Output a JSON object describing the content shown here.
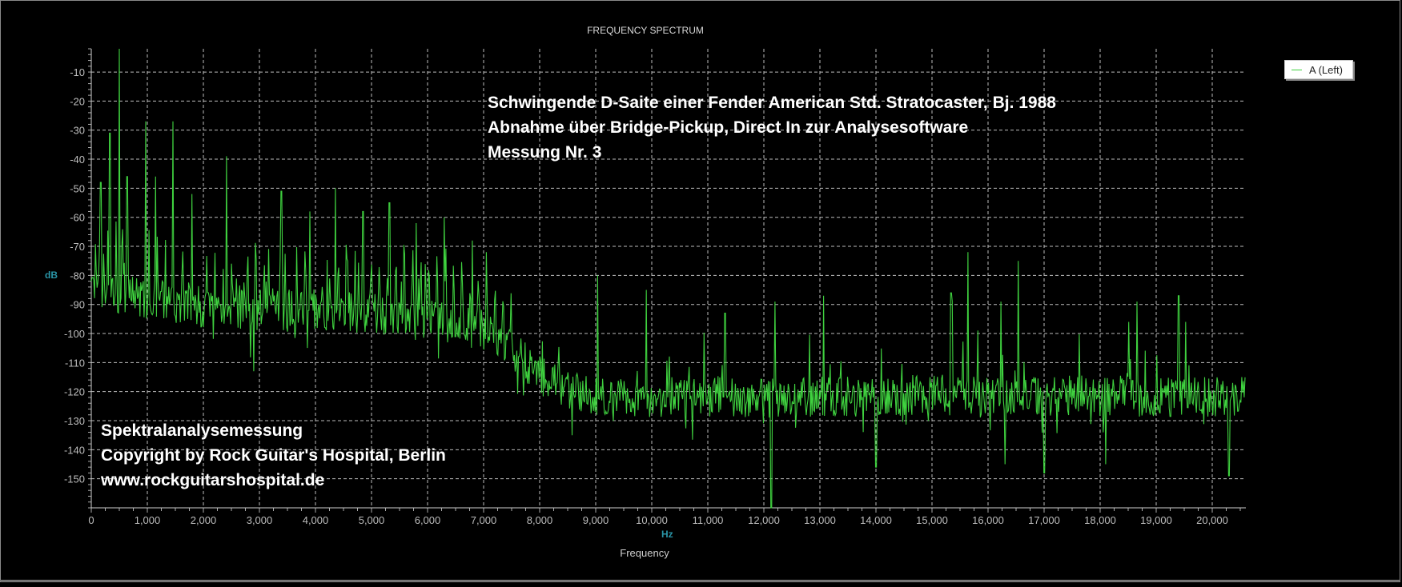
{
  "chart_data": {
    "type": "line",
    "title": "FREQUENCY SPECTRUM",
    "xlabel": "Frequency",
    "xunit": "Hz",
    "ylabel": "dB",
    "xlim": [
      0,
      20600
    ],
    "ylim": [
      -160,
      -2
    ],
    "grid": true,
    "legend_position": "top-right",
    "x_ticks": [
      "0",
      "1,000",
      "2,000",
      "3,000",
      "4,000",
      "5,000",
      "6,000",
      "7,000",
      "8,000",
      "9,000",
      "10,000",
      "11,000",
      "12,000",
      "13,000",
      "14,000",
      "15,000",
      "16,000",
      "17,000",
      "18,000",
      "19,000",
      "20,000"
    ],
    "x_tick_values": [
      0,
      1000,
      2000,
      3000,
      4000,
      5000,
      6000,
      7000,
      8000,
      9000,
      10000,
      11000,
      12000,
      13000,
      14000,
      15000,
      16000,
      17000,
      18000,
      19000,
      20000
    ],
    "y_ticks": [
      "-10",
      "-20",
      "-30",
      "-40",
      "-50",
      "-60",
      "-70",
      "-80",
      "-90",
      "-100",
      "-110",
      "-120",
      "-130",
      "-140",
      "-150"
    ],
    "y_tick_values": [
      -10,
      -20,
      -30,
      -40,
      -50,
      -60,
      -70,
      -80,
      -90,
      -100,
      -110,
      -120,
      -130,
      -140,
      -150
    ],
    "series": [
      {
        "name": "A (Left)",
        "color": "#3fd13f",
        "noise_floor": [
          [
            0,
            -84
          ],
          [
            500,
            -86
          ],
          [
            1000,
            -88
          ],
          [
            2000,
            -91
          ],
          [
            3000,
            -92
          ],
          [
            4000,
            -92
          ],
          [
            5000,
            -93
          ],
          [
            6000,
            -95
          ],
          [
            7000,
            -99
          ],
          [
            7500,
            -106
          ],
          [
            8000,
            -114
          ],
          [
            8500,
            -119
          ],
          [
            9000,
            -122
          ],
          [
            12000,
            -122
          ],
          [
            16000,
            -121
          ],
          [
            20600,
            -122
          ]
        ],
        "peaks": [
          [
            170,
            -48
          ],
          [
            330,
            -31
          ],
          [
            500,
            -2
          ],
          [
            640,
            -46
          ],
          [
            970,
            -27
          ],
          [
            1150,
            -46
          ],
          [
            1460,
            -27
          ],
          [
            1800,
            -52
          ],
          [
            2410,
            -39
          ],
          [
            2900,
            -55
          ],
          [
            3390,
            -51
          ],
          [
            3900,
            -58
          ],
          [
            4360,
            -50
          ],
          [
            4850,
            -58
          ],
          [
            5320,
            -55
          ],
          [
            5800,
            -62
          ],
          [
            6300,
            -60
          ],
          [
            6800,
            -68
          ],
          [
            7050,
            -72
          ],
          [
            9030,
            -80
          ],
          [
            9900,
            -85
          ],
          [
            11310,
            -93
          ],
          [
            12200,
            -89
          ],
          [
            13070,
            -87
          ],
          [
            15340,
            -86
          ],
          [
            15360,
            -89
          ],
          [
            15640,
            -72
          ],
          [
            16230,
            -89
          ],
          [
            16540,
            -75
          ],
          [
            18510,
            -96
          ],
          [
            18660,
            -89
          ],
          [
            19400,
            -87
          ],
          [
            19530,
            -96
          ]
        ],
        "dips": [
          [
            2900,
            -113
          ],
          [
            8580,
            -135
          ],
          [
            12130,
            -160
          ],
          [
            14000,
            -146
          ],
          [
            16300,
            -145
          ],
          [
            17000,
            -148
          ],
          [
            18100,
            -145
          ],
          [
            20300,
            -149
          ]
        ]
      }
    ]
  },
  "annotations": {
    "top": [
      "Schwingende D-Saite einer Fender American Std. Stratocaster, Bj. 1988",
      "Abnahme über Bridge-Pickup, Direct In zur Analysesoftware",
      "Messung Nr. 3"
    ],
    "bottom": [
      "Spektralanalysemessung",
      "Copyright by Rock Guitar's Hospital, Berlin",
      "www.rockguitarshospital.de"
    ]
  }
}
